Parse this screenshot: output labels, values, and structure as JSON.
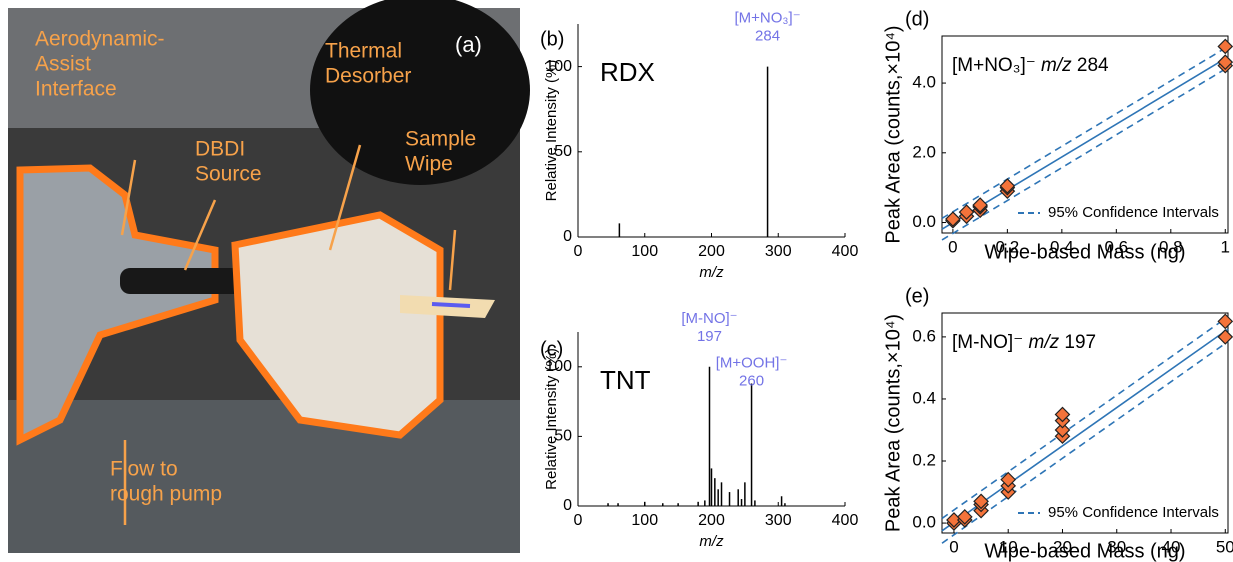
{
  "photo": {
    "panel": "(a)",
    "labels": [
      [
        "Aerodynamic-",
        "Assist",
        "Interface"
      ],
      [
        "DBDI",
        "Source"
      ],
      [
        "Thermal",
        "Desorber"
      ],
      [
        "Sample",
        "Wipe"
      ],
      [
        "Flow to",
        "rough pump"
      ]
    ]
  },
  "chart_data": [
    {
      "type": "stem",
      "panel": "(b)",
      "label": "RDX",
      "x_label": "m/z",
      "y_label": "Relative Intensity (%)",
      "xlim": [
        0,
        400
      ],
      "ylim": [
        0,
        125
      ],
      "xticks": [
        0,
        100,
        200,
        300,
        400
      ],
      "yticks": [
        0,
        50,
        100
      ],
      "box": false,
      "color": "#000000",
      "label_color": "#7373e6",
      "x": [
        62,
        284
      ],
      "values": [
        8,
        100
      ],
      "peak_labels": [
        null,
        {
          "ion": "[M+NO₃]⁻",
          "mz": 284
        }
      ]
    },
    {
      "type": "stem",
      "panel": "(c)",
      "label": "TNT",
      "x_label": "m/z",
      "y_label": "Relative Intensity (%)",
      "xlim": [
        0,
        400
      ],
      "ylim": [
        0,
        125
      ],
      "xticks": [
        0,
        100,
        200,
        300,
        400
      ],
      "yticks": [
        0,
        50,
        100
      ],
      "box": false,
      "color": "#000000",
      "label_color": "#7373e6",
      "x": [
        45,
        60,
        100,
        127,
        150,
        180,
        190,
        197,
        200,
        205,
        210,
        215,
        227,
        240,
        245,
        250,
        260,
        265,
        305,
        310
      ],
      "values": [
        2,
        2,
        3,
        2,
        2,
        3,
        4,
        100,
        27,
        20,
        12,
        17,
        10,
        12,
        5,
        17,
        88,
        4,
        7,
        2
      ],
      "peak_labels": [
        null,
        null,
        null,
        null,
        null,
        null,
        null,
        {
          "ion": "[M-NO]⁻",
          "mz": 197
        },
        null,
        null,
        null,
        null,
        null,
        null,
        null,
        null,
        {
          "ion": "[M+OOH]⁻",
          "mz": 260
        },
        null,
        null,
        null
      ]
    },
    {
      "type": "scatter",
      "panel": "(d)",
      "annotation": {
        "ion": "[M+NO₃]⁻",
        "mz_label": "m/z",
        "mz": 284
      },
      "x_label": "Wipe-based Mass (ng)",
      "y_label": "Peak Area (counts,×10⁴)",
      "xlim": [
        -0.04,
        1.01
      ],
      "ylim": [
        -0.3,
        5.35
      ],
      "xticks": [
        0,
        0.2,
        0.4,
        0.6,
        0.8,
        1
      ],
      "yticks": [
        {
          "value": 0,
          "label": "0.0"
        },
        {
          "value": 2,
          "label": "2.0"
        },
        {
          "value": 4,
          "label": "4.0"
        }
      ],
      "box": true,
      "legend": "lower-right",
      "series": [
        {
          "mode": "line",
          "color": "#2e75b6",
          "x": [
            -0.04,
            1.01
          ],
          "values": [
            -0.19,
            4.75
          ]
        },
        {
          "name": "95% Confidence Intervals",
          "mode": "dashed",
          "color": "#2e75b6",
          "x": [
            -0.04,
            1.01
          ],
          "values": [
            0.12,
            5.05
          ]
        },
        {
          "mode": "dashed",
          "color": "#2e75b6",
          "x": [
            -0.04,
            1.01
          ],
          "values": [
            -0.5,
            4.45
          ]
        },
        {
          "mode": "markers",
          "color": "#f4733a",
          "x": [
            0,
            0,
            0.05,
            0.05,
            0.1,
            0.1,
            0.1,
            0.2,
            0.2,
            0.2,
            1,
            1,
            1
          ],
          "values": [
            0.05,
            0.1,
            0.18,
            0.3,
            0.35,
            0.45,
            0.5,
            0.9,
            1.0,
            1.05,
            4.5,
            4.6,
            5.05
          ]
        }
      ]
    },
    {
      "type": "scatter",
      "panel": "(e)",
      "annotation": {
        "ion": "[M-NO]⁻",
        "mz_label": "m/z",
        "mz": 197
      },
      "x_label": "Wipe-based Mass (ng)",
      "y_label": "Peak Area (counts,×10⁴)",
      "xlim": [
        -2.2,
        50.5
      ],
      "ylim": [
        -0.032,
        0.677
      ],
      "xticks": [
        0,
        10,
        20,
        30,
        40,
        50
      ],
      "yticks": [
        {
          "value": 0,
          "label": "0.0"
        },
        0.2,
        0.4,
        0.6
      ],
      "box": true,
      "legend": "lower-right",
      "series": [
        {
          "mode": "line",
          "color": "#2e75b6",
          "x": [
            -2.2,
            50.5
          ],
          "values": [
            -0.025,
            0.625
          ]
        },
        {
          "name": "95% Confidence Intervals",
          "mode": "dashed",
          "color": "#2e75b6",
          "x": [
            -2.2,
            50.5
          ],
          "values": [
            0.015,
            0.665
          ]
        },
        {
          "mode": "dashed",
          "color": "#2e75b6",
          "x": [
            -2.2,
            50.5
          ],
          "values": [
            -0.065,
            0.585
          ]
        },
        {
          "mode": "markers",
          "color": "#f4733a",
          "x": [
            0,
            0,
            2,
            2,
            5,
            5,
            5,
            10,
            10,
            10,
            20,
            20,
            20,
            20,
            50,
            50
          ],
          "values": [
            0.0,
            0.01,
            0.01,
            0.02,
            0.04,
            0.06,
            0.07,
            0.1,
            0.12,
            0.14,
            0.28,
            0.3,
            0.33,
            0.35,
            0.6,
            0.65
          ]
        }
      ]
    }
  ]
}
